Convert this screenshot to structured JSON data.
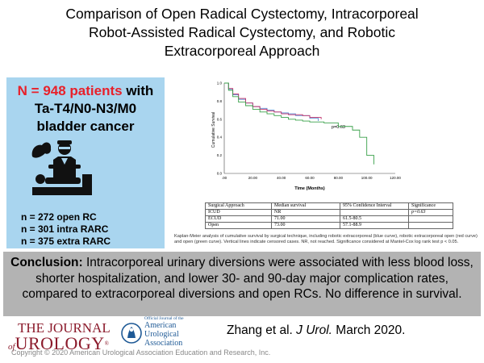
{
  "title": {
    "line1": "Comparison of Open Radical Cystectomy, Intracorporeal",
    "line2": "Robot-Assisted Radical Cystectomy, and Robotic",
    "line3": "Extracorporeal Approach"
  },
  "left_panel": {
    "count_label": "N = 948 patients",
    "count_suffix": "with",
    "stage": "Ta-T4/N0-N3/M0",
    "disease": "bladder cancer",
    "cohorts": [
      "n = 272 open RC",
      "n = 301 intra RARC",
      "n = 375 extra RARC"
    ]
  },
  "chart_data": {
    "type": "line",
    "title": "",
    "xlabel": "Time (Months)",
    "ylabel": "Cumulative Survival",
    "xlim": [
      0,
      120
    ],
    "ylim": [
      0,
      1.0
    ],
    "xticks": [
      ".00",
      "20.00",
      "40.00",
      "60.00",
      "80.00",
      "100.00",
      "120.00"
    ],
    "yticks": [
      "0.0",
      "0.2",
      "0.4",
      "0.6",
      "0.8",
      "1.0"
    ],
    "annotation": "p=0.63",
    "series": [
      {
        "name": "ICUD",
        "color": "#5b8fd6",
        "x": [
          0,
          3,
          6,
          10,
          15,
          20,
          25,
          30,
          35,
          40,
          45,
          50,
          55,
          60,
          66
        ],
        "y": [
          1.0,
          0.93,
          0.87,
          0.82,
          0.78,
          0.74,
          0.72,
          0.7,
          0.68,
          0.67,
          0.66,
          0.64,
          0.64,
          0.61,
          0.58
        ]
      },
      {
        "name": "ECUD",
        "color": "#c0306a",
        "x": [
          0,
          3,
          6,
          10,
          15,
          20,
          25,
          30,
          35,
          40,
          45,
          50,
          55,
          60,
          68
        ],
        "y": [
          1.0,
          0.94,
          0.88,
          0.83,
          0.78,
          0.74,
          0.71,
          0.69,
          0.68,
          0.66,
          0.65,
          0.65,
          0.64,
          0.62,
          0.6
        ]
      },
      {
        "name": "Open",
        "color": "#3aa14a",
        "x": [
          0,
          3,
          6,
          10,
          15,
          20,
          25,
          30,
          35,
          40,
          45,
          50,
          55,
          60,
          70,
          80,
          90,
          95,
          100,
          105
        ],
        "y": [
          1.0,
          0.92,
          0.85,
          0.79,
          0.75,
          0.71,
          0.68,
          0.66,
          0.64,
          0.62,
          0.6,
          0.59,
          0.58,
          0.57,
          0.56,
          0.52,
          0.48,
          0.4,
          0.2,
          0.1
        ]
      }
    ]
  },
  "survival_table": {
    "headers": [
      "Surgical Approach",
      "Median survival",
      "95% Confidence Interval",
      "Significance"
    ],
    "rows": [
      [
        "ICUD",
        "NR",
        "",
        "p=0.63"
      ],
      [
        "ECUD",
        "71.00",
        "61.5-80.5",
        ""
      ],
      [
        "Open",
        "73.00",
        "57.1-88.9",
        ""
      ]
    ]
  },
  "caption": "Kaplan-Meier analysis of cumulative survival by surgical technique, including robotic extracorporeal (blue curve), robotic extracorporeal open (red curve) and open (green curve). Vertical lines indicate censored cases. NR, not reached. Significance considered at Mantel-Cox log rank test p < 0.05.",
  "conclusion": {
    "label": "Conclusion:",
    "text": "Intracorporeal urinary diversions were associated with less blood loss, shorter hospitalization, and lower 30- and 90-day major complication rates, compared to extracorporeal diversions and open RCs. No difference in survival."
  },
  "journal": {
    "the": "THE JOURNAL",
    "of": "of",
    "name": "UROLOGY",
    "reg": "®"
  },
  "aua": {
    "official": "Official Journal of the",
    "name1": "American",
    "name2": "Urological",
    "name3": "Association"
  },
  "citation": {
    "authors": "Zhang et al.",
    "journal": "J Urol.",
    "date": "March 2020."
  },
  "copyright": "Copyright © 2020 American Urological Association Education and Research, Inc."
}
